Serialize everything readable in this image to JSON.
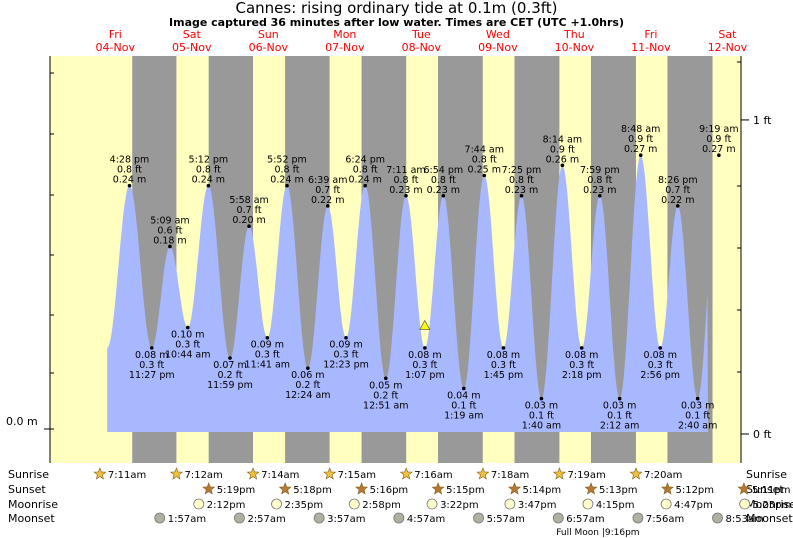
{
  "title": "Cannes: rising  ordinary tide at 0.1m (0.3ft)",
  "subtitle": "Image captured 36 minutes after low water. Times are CET (UTC +1.0hrs)",
  "colors": {
    "day": "#ffffc0",
    "night": "#999999",
    "tide": "#a8b8ff",
    "weekday": "#ff0000",
    "label": "#000000"
  },
  "chart_data": {
    "type": "area",
    "title": "Cannes: rising  ordinary tide at 0.1m (0.3ft)",
    "left_axis_label": "0.0 m",
    "right_axis_labels": [
      {
        "value_ft": 1,
        "label": "1 ft"
      },
      {
        "value_ft": 0,
        "label": "0 ft"
      }
    ],
    "ylim_m": [
      0,
      0.32
    ],
    "days": [
      {
        "weekday": "Fri",
        "date": "04-Nov"
      },
      {
        "weekday": "Sat",
        "date": "05-Nov"
      },
      {
        "weekday": "Sun",
        "date": "06-Nov"
      },
      {
        "weekday": "Mon",
        "date": "07-Nov"
      },
      {
        "weekday": "Tue",
        "date": "08-Nov"
      },
      {
        "weekday": "Wed",
        "date": "09-Nov"
      },
      {
        "weekday": "Thu",
        "date": "10-Nov"
      },
      {
        "weekday": "Fri",
        "date": "11-Nov"
      },
      {
        "weekday": "Sat",
        "date": "12-Nov"
      }
    ],
    "tides": [
      {
        "type": "high",
        "time": "4:28 pm",
        "ft": "0.8 ft",
        "m": "0.24 m",
        "value": 0.24
      },
      {
        "type": "low",
        "time": "11:27 pm",
        "ft": "0.3 ft",
        "m": "0.08 m",
        "value": 0.08
      },
      {
        "type": "high",
        "time": "5:09 am",
        "ft": "0.6 ft",
        "m": "0.18 m",
        "value": 0.18
      },
      {
        "type": "low",
        "time": "10:44 am",
        "ft": "0.3 ft",
        "m": "0.10 m",
        "value": 0.1
      },
      {
        "type": "high",
        "time": "5:12 pm",
        "ft": "0.8 ft",
        "m": "0.24 m",
        "value": 0.24
      },
      {
        "type": "low",
        "time": "11:59 pm",
        "ft": "0.2 ft",
        "m": "0.07 m",
        "value": 0.07
      },
      {
        "type": "high",
        "time": "5:58 am",
        "ft": "0.7 ft",
        "m": "0.20 m",
        "value": 0.2
      },
      {
        "type": "low",
        "time": "11:41 am",
        "ft": "0.3 ft",
        "m": "0.09 m",
        "value": 0.09
      },
      {
        "type": "high",
        "time": "5:52 pm",
        "ft": "0.8 ft",
        "m": "0.24 m",
        "value": 0.24
      },
      {
        "type": "low",
        "time": "12:24 am",
        "ft": "0.2 ft",
        "m": "0.06 m",
        "value": 0.06
      },
      {
        "type": "high",
        "time": "6:39 am",
        "ft": "0.7 ft",
        "m": "0.22 m",
        "value": 0.22
      },
      {
        "type": "low",
        "time": "12:23 pm",
        "ft": "0.3 ft",
        "m": "0.09 m",
        "value": 0.09
      },
      {
        "type": "high",
        "time": "6:24 pm",
        "ft": "0.8 ft",
        "m": "0.24 m",
        "value": 0.24
      },
      {
        "type": "low",
        "time": "12:51 am",
        "ft": "0.2 ft",
        "m": "0.05 m",
        "value": 0.05
      },
      {
        "type": "high",
        "time": "7:11 am",
        "ft": "0.8 ft",
        "m": "0.23 m",
        "value": 0.23
      },
      {
        "type": "low",
        "time": "1:07 pm",
        "ft": "0.3 ft",
        "m": "0.08 m",
        "value": 0.08
      },
      {
        "type": "high",
        "time": "6:54 pm",
        "ft": "0.8 ft",
        "m": "0.23 m",
        "value": 0.23
      },
      {
        "type": "low",
        "time": "1:19 am",
        "ft": "0.1 ft",
        "m": "0.04 m",
        "value": 0.04
      },
      {
        "type": "high",
        "time": "7:44 am",
        "ft": "0.8 ft",
        "m": "0.25 m",
        "value": 0.25
      },
      {
        "type": "low",
        "time": "1:45 pm",
        "ft": "0.3 ft",
        "m": "0.08 m",
        "value": 0.08
      },
      {
        "type": "high",
        "time": "7:25 pm",
        "ft": "0.8 ft",
        "m": "0.23 m",
        "value": 0.23
      },
      {
        "type": "low",
        "time": "1:40 am",
        "ft": "0.1 ft",
        "m": "0.03 m",
        "value": 0.03
      },
      {
        "type": "high",
        "time": "8:14 am",
        "ft": "0.9 ft",
        "m": "0.26 m",
        "value": 0.26
      },
      {
        "type": "low",
        "time": "2:18 pm",
        "ft": "0.3 ft",
        "m": "0.08 m",
        "value": 0.08
      },
      {
        "type": "high",
        "time": "7:59 pm",
        "ft": "0.8 ft",
        "m": "0.23 m",
        "value": 0.23
      },
      {
        "type": "low",
        "time": "2:12 am",
        "ft": "0.1 ft",
        "m": "0.03 m",
        "value": 0.03
      },
      {
        "type": "high",
        "time": "8:48 am",
        "ft": "0.9 ft",
        "m": "0.27 m",
        "value": 0.27
      },
      {
        "type": "low",
        "time": "2:56 pm",
        "ft": "0.3 ft",
        "m": "0.08 m",
        "value": 0.08
      },
      {
        "type": "high",
        "time": "8:26 pm",
        "ft": "0.7 ft",
        "m": "0.22 m",
        "value": 0.22
      },
      {
        "type": "low",
        "time": "2:40 am",
        "ft": "0.1 ft",
        "m": "0.03 m",
        "value": 0.03
      },
      {
        "type": "high",
        "time": "9:19 am",
        "ft": "0.9 ft",
        "m": "0.27 m",
        "value": 0.27
      }
    ],
    "current_marker": {
      "label": "now",
      "value": 0.1
    },
    "rows": {
      "sunrise": {
        "label": "Sunrise",
        "times": [
          "7:11am",
          "7:12am",
          "7:14am",
          "7:15am",
          "7:16am",
          "7:18am",
          "7:19am",
          "7:20am"
        ]
      },
      "sunset": {
        "label": "Sunset",
        "times": [
          "5:19pm",
          "5:18pm",
          "5:16pm",
          "5:15pm",
          "5:14pm",
          "5:13pm",
          "5:12pm",
          "5:11pm"
        ]
      },
      "moonrise": {
        "label": "Moonrise",
        "times": [
          "2:12pm",
          "2:35pm",
          "2:58pm",
          "3:22pm",
          "3:47pm",
          "4:15pm",
          "4:47pm",
          "5:25pm"
        ]
      },
      "moonset": {
        "label": "Moonset",
        "times": [
          "1:57am",
          "2:57am",
          "3:57am",
          "4:57am",
          "5:57am",
          "6:57am",
          "7:56am",
          "8:53am"
        ]
      }
    },
    "moon_phase": {
      "label": "Full Moon",
      "time": "9:16pm"
    }
  }
}
